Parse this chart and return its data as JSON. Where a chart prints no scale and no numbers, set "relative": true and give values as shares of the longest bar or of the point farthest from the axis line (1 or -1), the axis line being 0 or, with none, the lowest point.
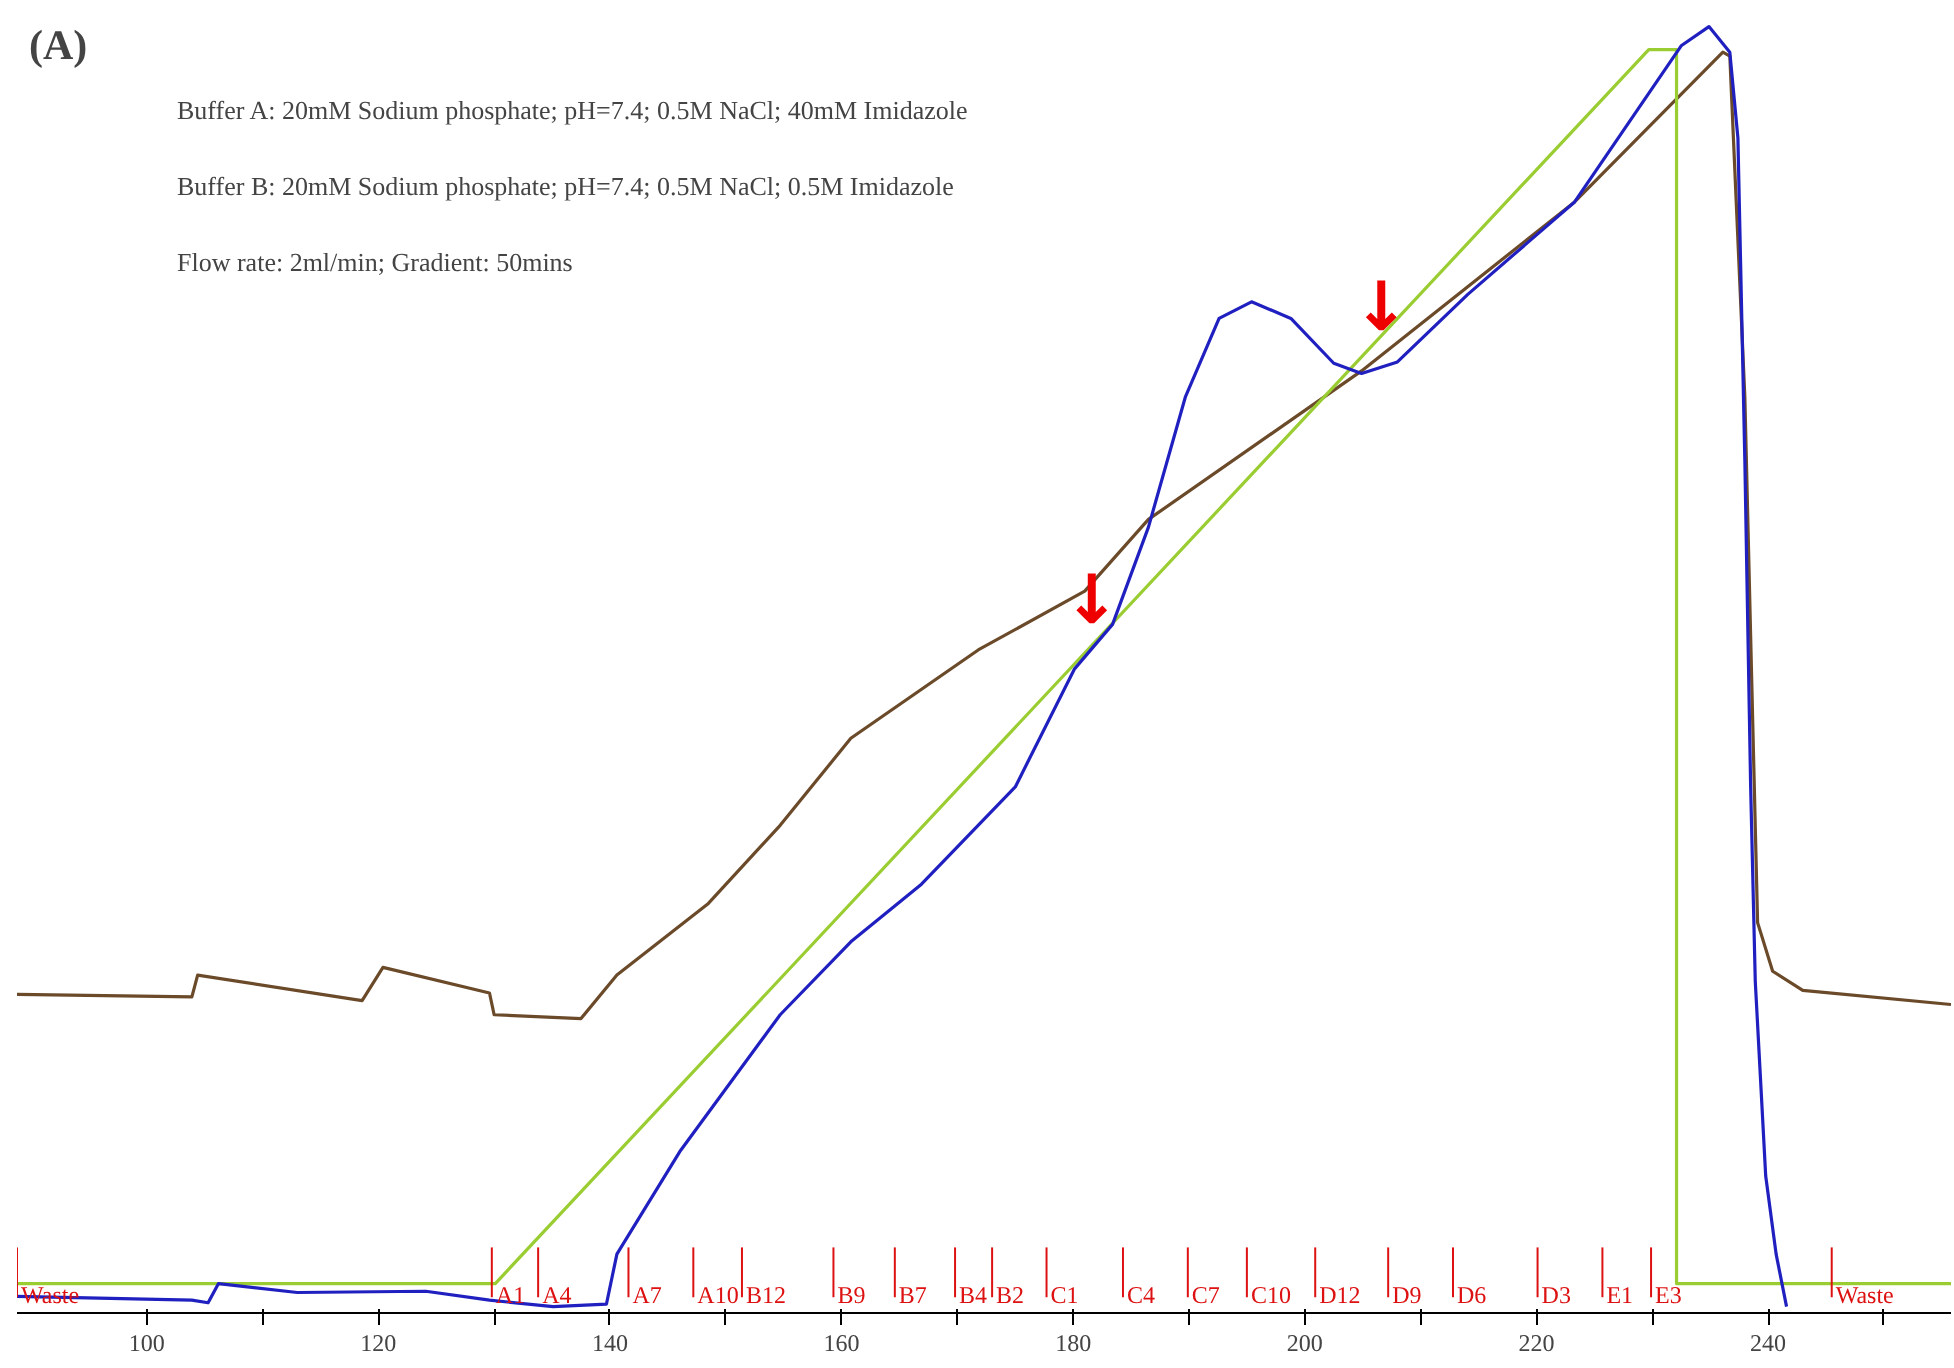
{
  "chart_data": {
    "type": "line",
    "title": "(A)",
    "relative": true,
    "xlim": [
      88.8,
      255.8
    ],
    "xticks": [
      100,
      {
        "value": 110,
        "label": null
      },
      120,
      {
        "value": 130,
        "label": null
      },
      140,
      {
        "value": 150,
        "label": null
      },
      160,
      {
        "value": 170,
        "label": null
      },
      180,
      {
        "value": 190,
        "label": null
      },
      200,
      {
        "value": 210,
        "label": null
      },
      220,
      {
        "value": 230,
        "label": null
      },
      240,
      {
        "value": 250,
        "label": null
      }
    ],
    "series": [
      {
        "color": "#6b4a2a",
        "x": [
          88.8,
          103.9,
          104.4,
          118.6,
          120.4,
          129.6,
          130.0,
          137.5,
          140.6,
          148.5,
          154.7,
          160.8,
          171.8,
          181.0,
          186.5,
          204.9,
          223.3,
          236.1,
          236.7,
          238.0,
          239.1,
          240.4,
          243.0,
          255.8
        ],
        "values": [
          0.244,
          0.242,
          0.259,
          0.239,
          0.265,
          0.245,
          0.228,
          0.225,
          0.259,
          0.315,
          0.376,
          0.444,
          0.513,
          0.559,
          0.615,
          0.731,
          0.863,
          0.98,
          0.977,
          0.71,
          0.3,
          0.262,
          0.247,
          0.236
        ]
      },
      {
        "color": "#9acd32",
        "x": [
          88.8,
          130.1,
          229.7,
          232.1,
          232.1,
          255.8
        ],
        "values": [
          0.018,
          0.018,
          0.982,
          0.982,
          0.018,
          0.018
        ]
      },
      {
        "color": "#2020c0",
        "x": [
          88.8,
          103.9,
          105.3,
          106.2,
          113.0,
          124.1,
          129.6,
          135.1,
          139.7,
          140.6,
          146.1,
          154.7,
          160.8,
          166.9,
          175.0,
          180.1,
          183.4,
          186.5,
          189.7,
          192.6,
          195.4,
          198.8,
          202.5,
          204.9,
          208.0,
          214.1,
          223.3,
          232.5,
          234.9,
          236.7,
          237.4,
          238.0,
          238.5,
          238.9,
          239.8,
          240.7,
          241.6
        ],
        "values": [
          0.008,
          0.005,
          0.003,
          0.018,
          0.011,
          0.012,
          0.005,
          0.0,
          0.002,
          0.041,
          0.122,
          0.228,
          0.285,
          0.33,
          0.406,
          0.498,
          0.533,
          0.609,
          0.711,
          0.772,
          0.785,
          0.772,
          0.737,
          0.729,
          0.738,
          0.791,
          0.863,
          0.985,
          1.0,
          0.98,
          0.913,
          0.66,
          0.406,
          0.254,
          0.102,
          0.041,
          0.0
        ]
      }
    ],
    "annotations": [
      "Buffer A: 20mM Sodium phosphate; pH=7.4; 0.5M NaCl; 40mM Imidazole",
      "Buffer B: 20mM Sodium phosphate; pH=7.4; 0.5M NaCl; 0.5M Imidazole",
      "Flow rate: 2ml/min; Gradient: 50mins",
      {
        "text": "↓",
        "x": 181.6,
        "y": 0.515
      },
      {
        "text": "↓",
        "x": 206.6,
        "y": 0.744
      }
    ],
    "ref_lines": [
      {
        "axis": "x",
        "value": 88.8,
        "label": "Waste",
        "color": "#dd1111"
      },
      {
        "axis": "x",
        "value": 129.8,
        "label": "A1",
        "color": "#dd1111"
      },
      {
        "axis": "x",
        "value": 133.8,
        "label": "A4",
        "color": "#dd1111"
      },
      {
        "axis": "x",
        "value": 141.6,
        "label": "A7",
        "color": "#dd1111"
      },
      {
        "axis": "x",
        "value": 147.2,
        "label": "A10",
        "color": "#dd1111"
      },
      {
        "axis": "x",
        "value": 151.4,
        "label": "B12",
        "color": "#dd1111"
      },
      {
        "axis": "x",
        "value": 159.3,
        "label": "B9",
        "color": "#dd1111"
      },
      {
        "axis": "x",
        "value": 164.6,
        "label": "B7",
        "color": "#dd1111"
      },
      {
        "axis": "x",
        "value": 169.8,
        "label": "B4",
        "color": "#dd1111"
      },
      {
        "axis": "x",
        "value": 173.0,
        "label": "B2",
        "color": "#dd1111"
      },
      {
        "axis": "x",
        "value": 177.7,
        "label": "C1",
        "color": "#dd1111"
      },
      {
        "axis": "x",
        "value": 184.3,
        "label": "C4",
        "color": "#dd1111"
      },
      {
        "axis": "x",
        "value": 189.9,
        "label": "C7",
        "color": "#dd1111"
      },
      {
        "axis": "x",
        "value": 195.0,
        "label": "C10",
        "color": "#dd1111"
      },
      {
        "axis": "x",
        "value": 200.9,
        "label": "D12",
        "color": "#dd1111"
      },
      {
        "axis": "x",
        "value": 207.2,
        "label": "D9",
        "color": "#dd1111"
      },
      {
        "axis": "x",
        "value": 212.8,
        "label": "D6",
        "color": "#dd1111"
      },
      {
        "axis": "x",
        "value": 220.1,
        "label": "D3",
        "color": "#dd1111"
      },
      {
        "axis": "x",
        "value": 225.7,
        "label": "E1",
        "color": "#dd1111"
      },
      {
        "axis": "x",
        "value": 229.9,
        "label": "E3",
        "color": "#dd1111"
      },
      {
        "axis": "x",
        "value": 245.5,
        "label": "Waste",
        "color": "#dd1111"
      }
    ]
  }
}
